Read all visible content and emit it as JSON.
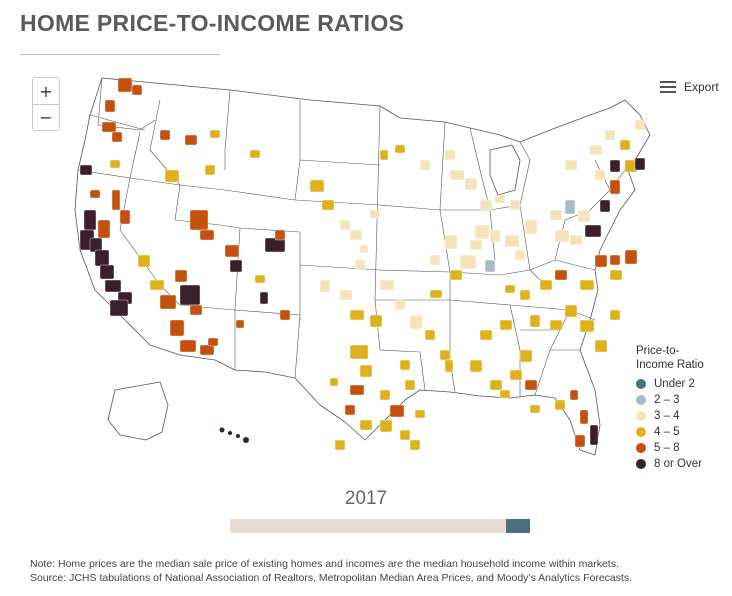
{
  "title": "HOME PRICE-TO-INCOME RATIOS",
  "zoom": {
    "in_label": "+",
    "out_label": "−"
  },
  "export_label": "Export",
  "legend": {
    "title_line1": "Price-to-",
    "title_line2": "Income Ratio",
    "items": [
      {
        "label": "Under 2",
        "color": "#4a7080"
      },
      {
        "label": "2 – 3",
        "color": "#a9bcc1"
      },
      {
        "label": "3 – 4",
        "color": "#f5e4b9"
      },
      {
        "label": "4 – 5",
        "color": "#dfb21d"
      },
      {
        "label": "5 – 8",
        "color": "#c4520e"
      },
      {
        "label": "8 or Over",
        "color": "#3a1f2c"
      }
    ]
  },
  "timeline": {
    "year": "2017",
    "progress": 0.92
  },
  "note_line1": "Note: Home prices are the median sale price of existing homes and incomes are the median household income within markets.",
  "note_line2": "Source: JCHS tabulations of National Association of Realtors, Metropolitan Median Area Prices, and Moody’s Analytics Forecasts."
}
